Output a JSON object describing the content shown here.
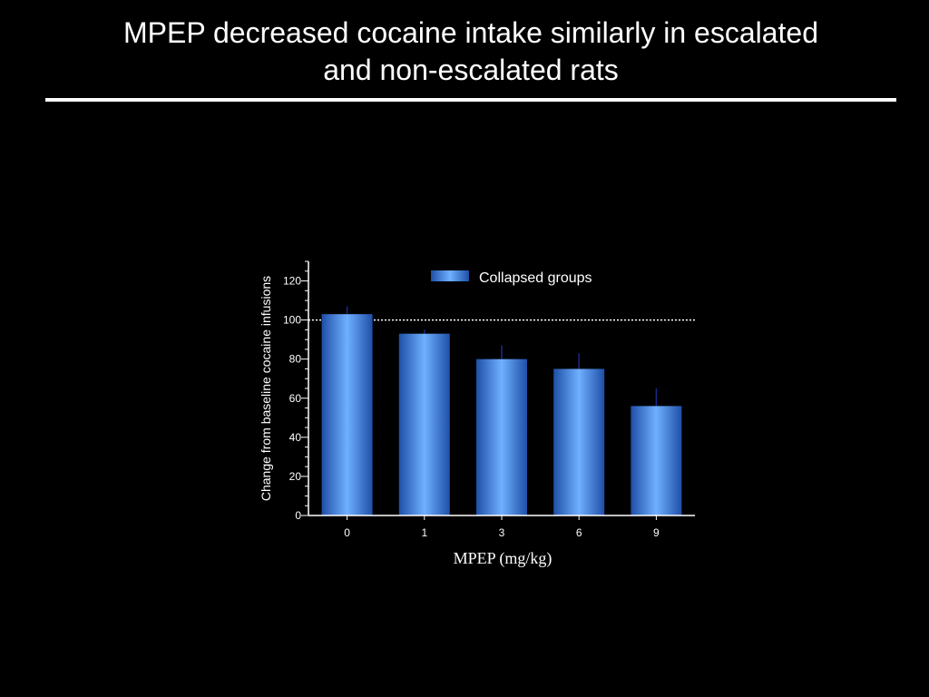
{
  "slide": {
    "title_line1": "MPEP decreased cocaine intake similarly in escalated",
    "title_line2": "and non-escalated rats"
  },
  "chart_data": {
    "type": "bar",
    "categories": [
      "0",
      "1",
      "3",
      "6",
      "9"
    ],
    "series": [
      {
        "name": "Collapsed groups",
        "values": [
          103,
          93,
          80,
          75,
          56
        ],
        "error_upper": [
          4,
          2,
          7,
          8,
          9
        ]
      }
    ],
    "xlabel": "MPEP (mg/kg)",
    "ylabel": "Change from baseline cocaine infusions",
    "ylim": [
      0,
      130
    ],
    "yticks": [
      0,
      20,
      40,
      60,
      80,
      100,
      120
    ],
    "reference_line": 100,
    "legend": {
      "placement": "top-right",
      "label": "Collapsed groups"
    },
    "grid": false,
    "colors": {
      "bar_edge": "#1f4fa8",
      "bar_center": "#6fb0ff",
      "error_bar": "#1a2a8c",
      "axis": "#ffffff",
      "reference_line": "#ffffff",
      "background": "#000000"
    }
  }
}
